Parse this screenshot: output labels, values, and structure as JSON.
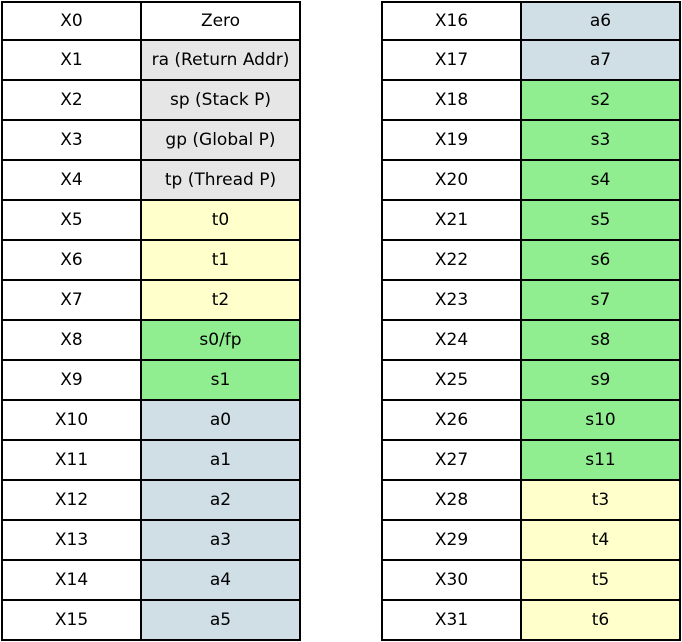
{
  "colors": {
    "zero": "#ffffff",
    "special": "#e6e6e6",
    "temporary": "#ffffcc",
    "saved": "#90ee90",
    "argument": "#d0dee6"
  },
  "left_table": [
    {
      "reg": "X0",
      "abi": "Zero",
      "kind": "zero"
    },
    {
      "reg": "X1",
      "abi": "ra (Return Addr)",
      "kind": "special"
    },
    {
      "reg": "X2",
      "abi": "sp (Stack P)",
      "kind": "special"
    },
    {
      "reg": "X3",
      "abi": "gp (Global P)",
      "kind": "special"
    },
    {
      "reg": "X4",
      "abi": "tp (Thread P)",
      "kind": "special"
    },
    {
      "reg": "X5",
      "abi": "t0",
      "kind": "temporary"
    },
    {
      "reg": "X6",
      "abi": "t1",
      "kind": "temporary"
    },
    {
      "reg": "X7",
      "abi": "t2",
      "kind": "temporary"
    },
    {
      "reg": "X8",
      "abi": "s0/fp",
      "kind": "saved"
    },
    {
      "reg": "X9",
      "abi": "s1",
      "kind": "saved"
    },
    {
      "reg": "X10",
      "abi": "a0",
      "kind": "argument"
    },
    {
      "reg": "X11",
      "abi": "a1",
      "kind": "argument"
    },
    {
      "reg": "X12",
      "abi": "a2",
      "kind": "argument"
    },
    {
      "reg": "X13",
      "abi": "a3",
      "kind": "argument"
    },
    {
      "reg": "X14",
      "abi": "a4",
      "kind": "argument"
    },
    {
      "reg": "X15",
      "abi": "a5",
      "kind": "argument"
    }
  ],
  "right_table": [
    {
      "reg": "X16",
      "abi": "a6",
      "kind": "argument"
    },
    {
      "reg": "X17",
      "abi": "a7",
      "kind": "argument"
    },
    {
      "reg": "X18",
      "abi": "s2",
      "kind": "saved"
    },
    {
      "reg": "X19",
      "abi": "s3",
      "kind": "saved"
    },
    {
      "reg": "X20",
      "abi": "s4",
      "kind": "saved"
    },
    {
      "reg": "X21",
      "abi": "s5",
      "kind": "saved"
    },
    {
      "reg": "X22",
      "abi": "s6",
      "kind": "saved"
    },
    {
      "reg": "X23",
      "abi": "s7",
      "kind": "saved"
    },
    {
      "reg": "X24",
      "abi": "s8",
      "kind": "saved"
    },
    {
      "reg": "X25",
      "abi": "s9",
      "kind": "saved"
    },
    {
      "reg": "X26",
      "abi": "s10",
      "kind": "saved"
    },
    {
      "reg": "X27",
      "abi": "s11",
      "kind": "saved"
    },
    {
      "reg": "X28",
      "abi": "t3",
      "kind": "temporary"
    },
    {
      "reg": "X29",
      "abi": "t4",
      "kind": "temporary"
    },
    {
      "reg": "X30",
      "abi": "t5",
      "kind": "temporary"
    },
    {
      "reg": "X31",
      "abi": "t6",
      "kind": "temporary"
    }
  ]
}
